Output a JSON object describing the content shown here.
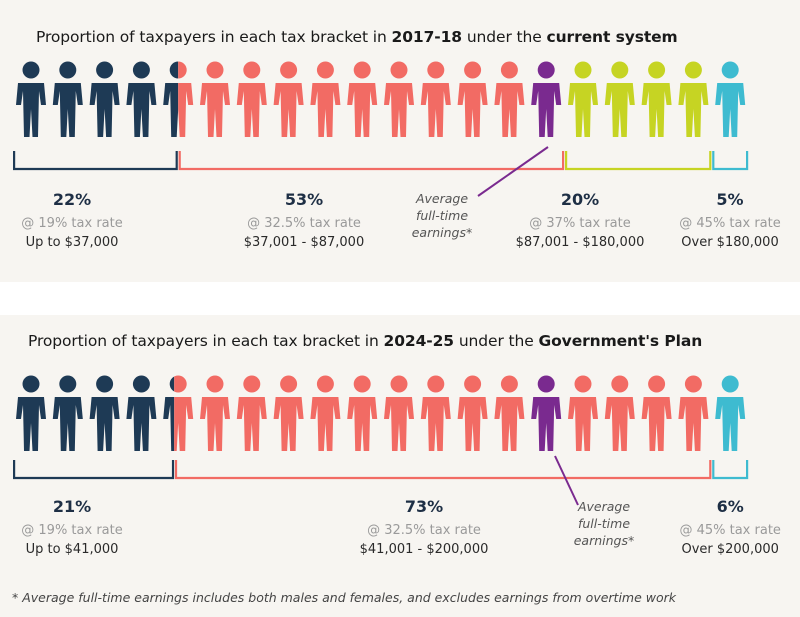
{
  "colors": {
    "navy": "#1e3a55",
    "coral": "#f26b64",
    "purple": "#7a2a8f",
    "lime": "#c6d423",
    "teal": "#3ebbd0"
  },
  "person_icon": "person-icon",
  "chart_data": [
    {
      "type": "icon-array",
      "title_parts": [
        "Proportion of taxpayers in each tax bracket in ",
        "2017-18",
        " under the ",
        "current system"
      ],
      "total_icons": 20,
      "average_icon_index": 14,
      "average_label": [
        "Average",
        "full-time",
        "earnings*"
      ],
      "brackets": [
        {
          "percent": "22%",
          "rate": "@ 19% tax rate",
          "range": "Up to $37,000",
          "icons": 4.5,
          "color": "navy"
        },
        {
          "percent": "53%",
          "rate": "@ 32.5% tax rate",
          "range": "$37,001 - $87,000",
          "icons": 10.5,
          "color": "coral"
        },
        {
          "percent": "20%",
          "rate": "@ 37% tax rate",
          "range": "$87,001 - $180,000",
          "icons": 4,
          "color": "lime"
        },
        {
          "percent": "5%",
          "rate": "@ 45% tax rate",
          "range": "Over $180,000",
          "icons": 1,
          "color": "teal"
        }
      ]
    },
    {
      "type": "icon-array",
      "title_parts": [
        "Proportion of taxpayers in each tax bracket in ",
        "2024-25",
        " under the ",
        "Government's Plan"
      ],
      "total_icons": 20,
      "average_icon_index": 14,
      "average_label": [
        "Average",
        "full-time",
        "earnings*"
      ],
      "brackets": [
        {
          "percent": "21%",
          "rate": "@ 19% tax rate",
          "range": "Up to $41,000",
          "icons": 4.4,
          "color": "navy"
        },
        {
          "percent": "73%",
          "rate": "@ 32.5% tax rate",
          "range": "$41,001 - $200,000",
          "icons": 14.6,
          "color": "coral"
        },
        {
          "percent": "6%",
          "rate": "@ 45% tax rate",
          "range": "Over $200,000",
          "icons": 1,
          "color": "teal"
        }
      ]
    }
  ],
  "footnote": "* Average full-time earnings includes both males and females, and excludes earnings from overtime work"
}
